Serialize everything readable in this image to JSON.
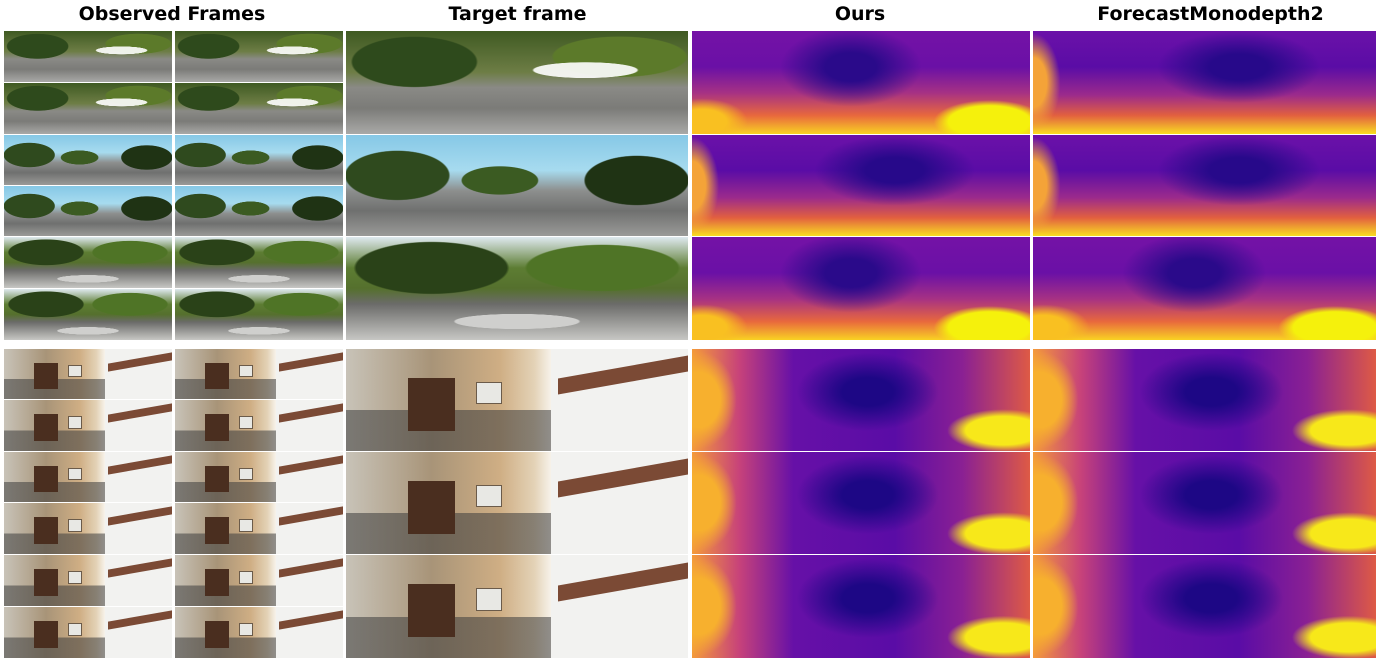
{
  "headers": {
    "observed": "Observed Frames",
    "target": "Target frame",
    "ours": "Ours",
    "baseline": "ForecastMonodepth2"
  }
}
